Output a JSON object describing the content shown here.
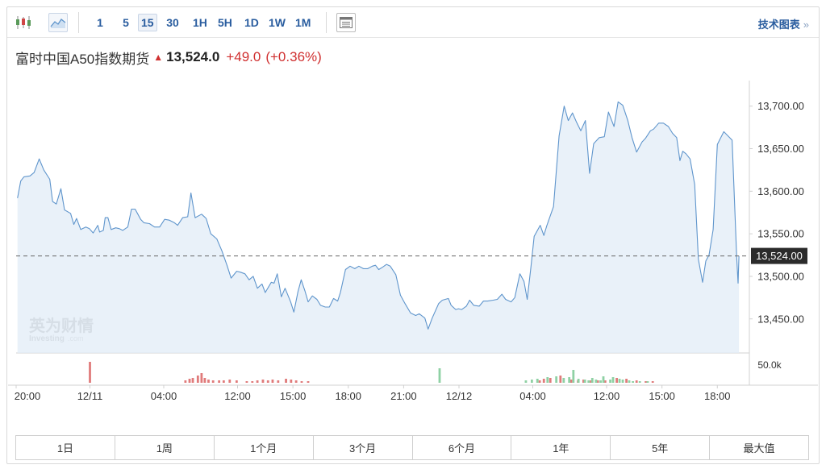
{
  "toolbar": {
    "chart_type_icons": [
      "candlestick-icon",
      "area-chart-icon"
    ],
    "intervals": [
      "1",
      "5",
      "15",
      "30",
      "1H",
      "5H",
      "1D",
      "1W",
      "1M"
    ],
    "active_interval": "15",
    "table_icon": "table-icon",
    "tech_chart_label": "技术图表",
    "tech_chart_arrow": "»"
  },
  "quote": {
    "name": "富时中国A50指数期货",
    "price": "13,524.0",
    "change": "+49.0",
    "change_pct": "(+0.36%)"
  },
  "watermark": {
    "cn": "英为财情",
    "en": "Investing",
    "domain": ".com"
  },
  "colors": {
    "line": "#5f95cc",
    "area": "#e3edf7",
    "volume_up": "#e07b7b",
    "volume_down": "#8fd1a4",
    "price_tag_bg": "#2b2b2b",
    "up_text": "#d03030",
    "link": "#2a5d9f"
  },
  "chart_data": {
    "type": "area",
    "y_ticks": [
      "13,700.00",
      "13,650.00",
      "13,600.00",
      "13,550.00",
      "13,500.00",
      "13,450.00"
    ],
    "y_tick_values": [
      13700,
      13650,
      13600,
      13550,
      13500,
      13450
    ],
    "ylim": [
      13410,
      13730
    ],
    "current_price_label": "13,524.00",
    "current_price": 13524,
    "volume_tick_label": "50.0k",
    "x_ticks": [
      {
        "label": "20:00",
        "t": 0
      },
      {
        "label": "12/11",
        "t": 16
      },
      {
        "label": "04:00",
        "t": 32
      },
      {
        "label": "12:00",
        "t": 48
      },
      {
        "label": "15:00",
        "t": 60
      },
      {
        "label": "18:00",
        "t": 72
      },
      {
        "label": "21:00",
        "t": 84
      },
      {
        "label": "12/12",
        "t": 96
      },
      {
        "label": "04:00",
        "t": 112
      },
      {
        "label": "12:00",
        "t": 128
      },
      {
        "label": "15:00",
        "t": 140
      },
      {
        "label": "18:00",
        "t": 152
      }
    ],
    "t_range": [
      0,
      156.5
    ],
    "series": [
      {
        "points": [
          [
            0.3,
            13592
          ],
          [
            1,
            13612
          ],
          [
            1.7,
            13617
          ],
          [
            3,
            13618
          ],
          [
            3.9,
            13622
          ],
          [
            5,
            13638
          ],
          [
            6,
            13625
          ],
          [
            7.3,
            13614
          ],
          [
            7.9,
            13588
          ],
          [
            8.7,
            13585
          ],
          [
            9.7,
            13603
          ],
          [
            10.5,
            13578
          ],
          [
            11.8,
            13574
          ],
          [
            12.5,
            13561
          ],
          [
            13.1,
            13568
          ],
          [
            14,
            13555
          ],
          [
            15.1,
            13558
          ],
          [
            15.9,
            13556
          ],
          [
            16.7,
            13551
          ],
          [
            17.7,
            13560
          ],
          [
            18.1,
            13552
          ],
          [
            18.9,
            13554
          ],
          [
            19.3,
            13569
          ],
          [
            19.9,
            13569
          ],
          [
            20.6,
            13555
          ],
          [
            21.6,
            13557
          ],
          [
            22.4,
            13556
          ],
          [
            23.1,
            13554
          ],
          [
            24.2,
            13558
          ],
          [
            25,
            13579
          ],
          [
            25.8,
            13579
          ],
          [
            27,
            13567
          ],
          [
            27.7,
            13563
          ],
          [
            28.9,
            13562
          ],
          [
            30,
            13558
          ],
          [
            31.1,
            13558
          ],
          [
            32.2,
            13567
          ],
          [
            33.2,
            13566
          ],
          [
            34.3,
            13563
          ],
          [
            35,
            13560
          ],
          [
            36.1,
            13569
          ],
          [
            37.2,
            13570
          ],
          [
            37.9,
            13598
          ],
          [
            38.8,
            13569
          ],
          [
            40.2,
            13573
          ],
          [
            41.2,
            13568
          ],
          [
            42.2,
            13550
          ],
          [
            43.5,
            13544
          ],
          [
            44.6,
            13530
          ],
          [
            45.7,
            13513
          ],
          [
            46.6,
            13498
          ],
          [
            47.8,
            13506
          ],
          [
            48.6,
            13505
          ],
          [
            49.6,
            13503
          ],
          [
            50.5,
            13496
          ],
          [
            51.4,
            13500
          ],
          [
            52.3,
            13486
          ],
          [
            53.3,
            13491
          ],
          [
            54,
            13481
          ],
          [
            55.3,
            13493
          ],
          [
            55.9,
            13492
          ],
          [
            56.6,
            13503
          ],
          [
            57.5,
            13476
          ],
          [
            58.3,
            13486
          ],
          [
            59.5,
            13470
          ],
          [
            60.2,
            13458
          ],
          [
            61.1,
            13482
          ],
          [
            61.8,
            13496
          ],
          [
            62.6,
            13483
          ],
          [
            63.3,
            13470
          ],
          [
            64.2,
            13477
          ],
          [
            65.2,
            13473
          ],
          [
            66,
            13466
          ],
          [
            67,
            13464
          ],
          [
            67.9,
            13464
          ],
          [
            68.8,
            13474
          ],
          [
            69.7,
            13471
          ],
          [
            70.3,
            13481
          ],
          [
            71.4,
            13508
          ],
          [
            72.4,
            13512
          ],
          [
            73.4,
            13509
          ],
          [
            74.3,
            13512
          ],
          [
            75.3,
            13509
          ],
          [
            76.2,
            13509
          ],
          [
            77.2,
            13512
          ],
          [
            77.9,
            13513
          ],
          [
            78.6,
            13508
          ],
          [
            79.5,
            13511
          ],
          [
            80.3,
            13514
          ],
          [
            81.1,
            13512
          ],
          [
            82.3,
            13502
          ],
          [
            83.3,
            13478
          ],
          [
            84.3,
            13468
          ],
          [
            85.5,
            13457
          ],
          [
            86.6,
            13454
          ],
          [
            87.4,
            13456
          ],
          [
            88.6,
            13451
          ],
          [
            89.3,
            13438
          ],
          [
            90.2,
            13451
          ],
          [
            91.6,
            13468
          ],
          [
            92.4,
            13472
          ],
          [
            93.7,
            13474
          ],
          [
            94.3,
            13466
          ],
          [
            95.3,
            13461
          ],
          [
            95.9,
            13462
          ],
          [
            96.6,
            13461
          ],
          [
            97.6,
            13465
          ],
          [
            98.3,
            13472
          ],
          [
            99.2,
            13466
          ],
          [
            100.4,
            13465
          ],
          [
            101.3,
            13471
          ],
          [
            102.2,
            13471
          ],
          [
            103.4,
            13472
          ],
          [
            104.3,
            13473
          ],
          [
            105.3,
            13479
          ],
          [
            106.1,
            13473
          ],
          [
            107.3,
            13470
          ],
          [
            108.1,
            13475
          ],
          [
            109.2,
            13503
          ],
          [
            110.1,
            13494
          ],
          [
            110.8,
            13473
          ],
          [
            111.6,
            13511
          ],
          [
            112.3,
            13547
          ],
          [
            113.6,
            13560
          ],
          [
            114.4,
            13548
          ],
          [
            115,
            13559
          ],
          [
            116.5,
            13582
          ],
          [
            117.7,
            13665
          ],
          [
            118.8,
            13700
          ],
          [
            119.7,
            13683
          ],
          [
            120.6,
            13692
          ],
          [
            121.5,
            13681
          ],
          [
            122.4,
            13671
          ],
          [
            123.4,
            13683
          ],
          [
            124.3,
            13621
          ],
          [
            125.2,
            13656
          ],
          [
            126.4,
            13663
          ],
          [
            127.5,
            13664
          ],
          [
            128.4,
            13693
          ],
          [
            129.6,
            13676
          ],
          [
            130.5,
            13705
          ],
          [
            131.5,
            13701
          ],
          [
            132.6,
            13683
          ],
          [
            133.5,
            13663
          ],
          [
            134.5,
            13646
          ],
          [
            135.7,
            13658
          ],
          [
            136.4,
            13662
          ],
          [
            137.5,
            13671
          ],
          [
            138.2,
            13673
          ],
          [
            139.3,
            13680
          ],
          [
            140.3,
            13680
          ],
          [
            141.4,
            13676
          ],
          [
            142.3,
            13668
          ],
          [
            143.2,
            13663
          ],
          [
            143.9,
            13636
          ],
          [
            144.5,
            13647
          ],
          [
            145.2,
            13644
          ],
          [
            146.1,
            13638
          ],
          [
            147.1,
            13608
          ],
          [
            147.9,
            13520
          ],
          [
            148.8,
            13493
          ],
          [
            149.5,
            13518
          ],
          [
            150.2,
            13525
          ],
          [
            151.1,
            13555
          ],
          [
            152,
            13655
          ],
          [
            153.4,
            13670
          ],
          [
            155.2,
            13660
          ],
          [
            156.2,
            13522
          ],
          [
            156.5,
            13492
          ],
          [
            156.7,
            13524
          ]
        ]
      }
    ],
    "volume": {
      "up_bars": [
        [
          16,
          26
        ],
        [
          36.7,
          3
        ],
        [
          37.6,
          5
        ],
        [
          38.3,
          6
        ],
        [
          39.4,
          9
        ],
        [
          40.2,
          12
        ],
        [
          40.9,
          6
        ],
        [
          41.7,
          4
        ],
        [
          42.7,
          3
        ],
        [
          44,
          3
        ],
        [
          45,
          3
        ],
        [
          46.3,
          4
        ],
        [
          47.8,
          3
        ],
        [
          50,
          2
        ],
        [
          51.2,
          2
        ],
        [
          52.3,
          3
        ],
        [
          53.5,
          4
        ],
        [
          54.6,
          3
        ],
        [
          55.6,
          4
        ],
        [
          56.8,
          3
        ],
        [
          58.5,
          5
        ],
        [
          59.6,
          4
        ],
        [
          60.7,
          3
        ],
        [
          61.9,
          2
        ],
        [
          63.3,
          2
        ],
        [
          113.5,
          3
        ],
        [
          114.4,
          5
        ],
        [
          115.8,
          6
        ],
        [
          118,
          9
        ],
        [
          120.3,
          4
        ],
        [
          121.8,
          3
        ],
        [
          123,
          4
        ],
        [
          124.6,
          3
        ],
        [
          126.1,
          3
        ],
        [
          127.7,
          3
        ],
        [
          130.2,
          6
        ],
        [
          132.3,
          5
        ],
        [
          134.5,
          3
        ],
        [
          136.5,
          2
        ],
        [
          138,
          2
        ]
      ],
      "down_bars": [
        [
          91.8,
          18
        ],
        [
          110.5,
          3
        ],
        [
          111.8,
          4
        ],
        [
          113,
          5
        ],
        [
          115.2,
          7
        ],
        [
          117.1,
          8
        ],
        [
          118.7,
          6
        ],
        [
          119.9,
          7
        ],
        [
          120.8,
          16
        ],
        [
          121.9,
          5
        ],
        [
          123.3,
          4
        ],
        [
          124.1,
          3
        ],
        [
          124.9,
          6
        ],
        [
          125.7,
          4
        ],
        [
          126.7,
          3
        ],
        [
          127.3,
          8
        ],
        [
          128.8,
          4
        ],
        [
          129.4,
          7
        ],
        [
          130.8,
          5
        ],
        [
          131.5,
          4
        ],
        [
          132.9,
          3
        ],
        [
          133.7,
          2
        ],
        [
          135.2,
          2
        ],
        [
          136.9,
          2
        ]
      ]
    }
  }
}
